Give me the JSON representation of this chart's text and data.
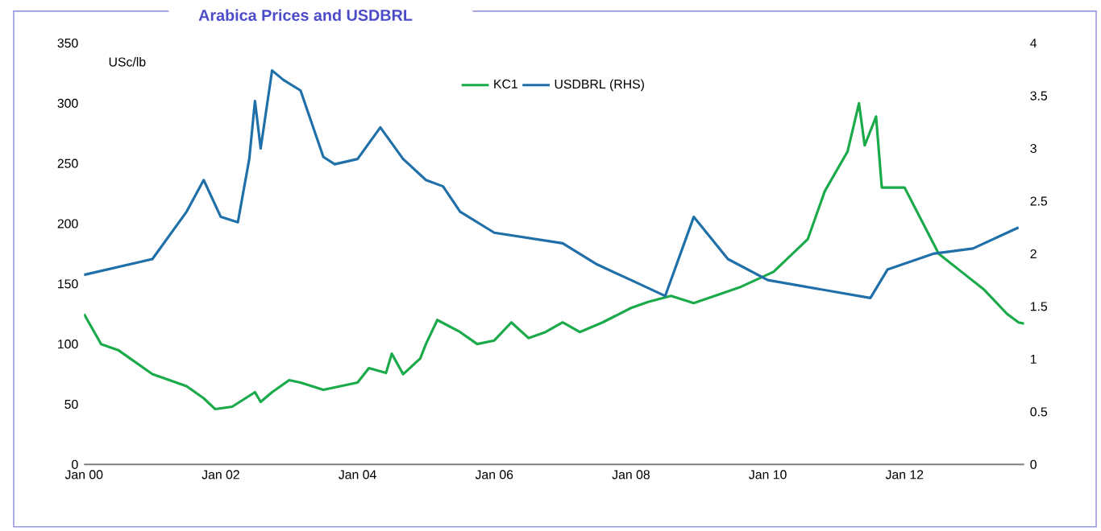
{
  "chart_data": {
    "type": "line",
    "title": "Arabica Prices and USDBRL",
    "ylabel": "USc/lb",
    "xlim": [
      "2000-01",
      "2013-10"
    ],
    "xticks": [
      {
        "value": "2000-01",
        "label": "Jan 00"
      },
      {
        "value": "2002-01",
        "label": "Jan 02"
      },
      {
        "value": "2004-01",
        "label": "Jan 04"
      },
      {
        "value": "2006-01",
        "label": "Jan 06"
      },
      {
        "value": "2008-01",
        "label": "Jan 08"
      },
      {
        "value": "2010-01",
        "label": "Jan 10"
      },
      {
        "value": "2012-01",
        "label": "Jan 12"
      }
    ],
    "ylim": [
      0,
      350
    ],
    "yticks": [
      0,
      50,
      100,
      150,
      200,
      250,
      300,
      350
    ],
    "y2lim": [
      0,
      4
    ],
    "y2ticks": [
      0,
      0.5,
      1,
      1.5,
      2,
      2.5,
      3,
      3.5,
      4
    ],
    "legend": "top",
    "grid": false,
    "marker": "none",
    "line_style": "solid",
    "series": [
      {
        "name": "KC1",
        "color": "#1aaa4a",
        "x": [
          "2000-01",
          "2000-04",
          "2000-07",
          "2000-10",
          "2001-01",
          "2001-04",
          "2001-07",
          "2001-10",
          "2001-12",
          "2002-03",
          "2002-07",
          "2002-08",
          "2002-10",
          "2003-01",
          "2003-03",
          "2003-07",
          "2003-10",
          "2004-01",
          "2004-03",
          "2004-06",
          "2004-07",
          "2004-09",
          "2004-12",
          "2005-01",
          "2005-03",
          "2005-07",
          "2005-10",
          "2006-01",
          "2006-04",
          "2006-07",
          "2006-10",
          "2007-01",
          "2007-04",
          "2007-08",
          "2008-01",
          "2008-04",
          "2008-08",
          "2008-12",
          "2009-08",
          "2010-02",
          "2010-08",
          "2010-11",
          "2011-03",
          "2011-05",
          "2011-06",
          "2011-08",
          "2011-09",
          "2012-01",
          "2012-07",
          "2012-11",
          "2013-03",
          "2013-07",
          "2013-09",
          "2013-10"
        ],
        "values": [
          125,
          100,
          95,
          85,
          75,
          70,
          65,
          55,
          46,
          48,
          60,
          52,
          60,
          70,
          68,
          62,
          65,
          68,
          80,
          76,
          92,
          75,
          88,
          100,
          120,
          110,
          100,
          103,
          118,
          105,
          110,
          118,
          110,
          118,
          130,
          135,
          140,
          134,
          147,
          160,
          187,
          227,
          260,
          300,
          265,
          289,
          230,
          230,
          175,
          160,
          145,
          125,
          118,
          117
        ]
      },
      {
        "name": "USDBRL (RHS)",
        "color": "#1f6fa8",
        "axis": "y2",
        "x": [
          "2000-01",
          "2001-01",
          "2001-07",
          "2001-10",
          "2002-01",
          "2002-04",
          "2002-06",
          "2002-07",
          "2002-08",
          "2002-10",
          "2002-12",
          "2003-03",
          "2003-07",
          "2003-09",
          "2004-01",
          "2004-05",
          "2004-09",
          "2005-01",
          "2005-04",
          "2005-07",
          "2006-01",
          "2006-07",
          "2007-01",
          "2007-07",
          "2008-01",
          "2008-07",
          "2008-12",
          "2009-06",
          "2010-01",
          "2011-07",
          "2011-10",
          "2012-06",
          "2013-01",
          "2013-07",
          "2013-09"
        ],
        "values": [
          1.8,
          1.95,
          2.4,
          2.7,
          2.35,
          2.3,
          2.9,
          3.45,
          3.0,
          3.74,
          3.65,
          3.55,
          2.92,
          2.85,
          2.9,
          3.2,
          2.9,
          2.7,
          2.64,
          2.4,
          2.2,
          2.15,
          2.1,
          1.9,
          1.75,
          1.6,
          2.35,
          1.95,
          1.75,
          1.58,
          1.85,
          2.0,
          2.05,
          2.2,
          2.25
        ]
      }
    ]
  }
}
